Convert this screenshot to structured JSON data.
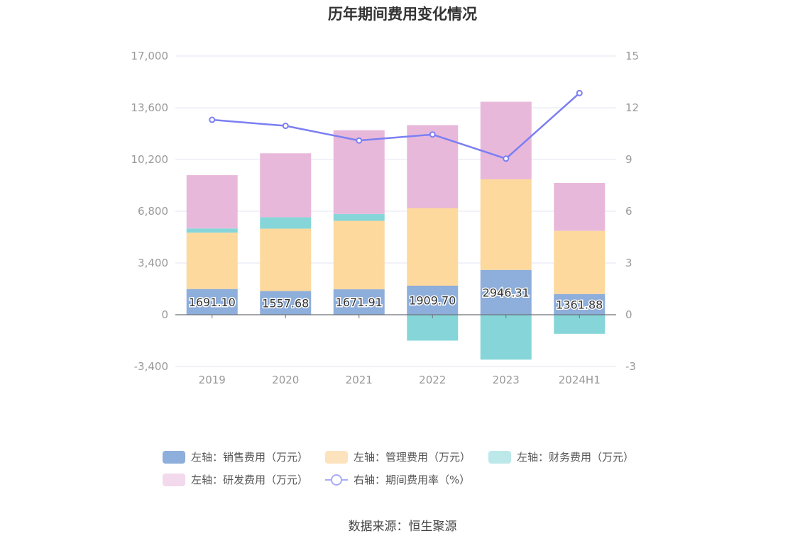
{
  "title": "历年期间费用变化情况",
  "source": "数据来源：恒生聚源",
  "legend": {
    "sales": "左轴：销售费用（万元）",
    "admin": "左轴：管理费用（万元）",
    "finance": "左轴：财务费用（万元）",
    "rd": "左轴：研发费用（万元）",
    "rate": "右轴：期间费用率（%）"
  },
  "colors": {
    "sales": "#8eaedb",
    "admin": "#fdd99e",
    "finance": "#86d6d9",
    "rd": "#e8b8da",
    "rate": "#7b7ff2",
    "grid": "#e3e4f3",
    "axis_text": "#999999"
  },
  "chart_data": {
    "type": "bar",
    "stacked": true,
    "categories": [
      "2019",
      "2020",
      "2021",
      "2022",
      "2023",
      "2024H1"
    ],
    "left_axis": {
      "ylim": [
        -3400,
        17000
      ],
      "ticks": [
        17000,
        13600,
        10200,
        6800,
        3400,
        0,
        -3400
      ],
      "tick_labels": [
        "17,000",
        "13,600",
        "10,200",
        "6,800",
        "3,400",
        "0",
        "-3,400"
      ]
    },
    "right_axis": {
      "ylim": [
        -3,
        15
      ],
      "ticks": [
        15,
        12,
        9,
        6,
        3,
        0,
        -3
      ],
      "tick_labels": [
        "15",
        "12",
        "9",
        "6",
        "3",
        "0",
        "-3"
      ]
    },
    "series": [
      {
        "name": "左轴：销售费用（万元）",
        "key": "sales",
        "axis": "left",
        "values": [
          1691.1,
          1557.68,
          1671.91,
          1909.7,
          2946.31,
          1361.88
        ],
        "labels": [
          "1691.10",
          "1557.68",
          "1671.91",
          "1909.70",
          "2946.31",
          "1361.88"
        ]
      },
      {
        "name": "左轴：管理费用（万元）",
        "key": "admin",
        "axis": "left",
        "values": [
          3700,
          4100,
          4500,
          5100,
          5950,
          4150
        ]
      },
      {
        "name": "左轴：财务费用（万元）",
        "key": "finance",
        "axis": "left",
        "values": [
          280,
          750,
          450,
          -1700,
          -2950,
          -1250
        ]
      },
      {
        "name": "左轴：研发费用（万元）",
        "key": "rd",
        "axis": "left",
        "values": [
          3500,
          4200,
          5500,
          5450,
          5100,
          3150
        ]
      },
      {
        "name": "右轴：期间费用率（%）",
        "key": "rate",
        "axis": "right",
        "type": "line",
        "values": [
          11.3,
          10.95,
          10.1,
          10.45,
          9.05,
          12.85
        ]
      }
    ],
    "grid": true,
    "legend_position": "bottom"
  }
}
